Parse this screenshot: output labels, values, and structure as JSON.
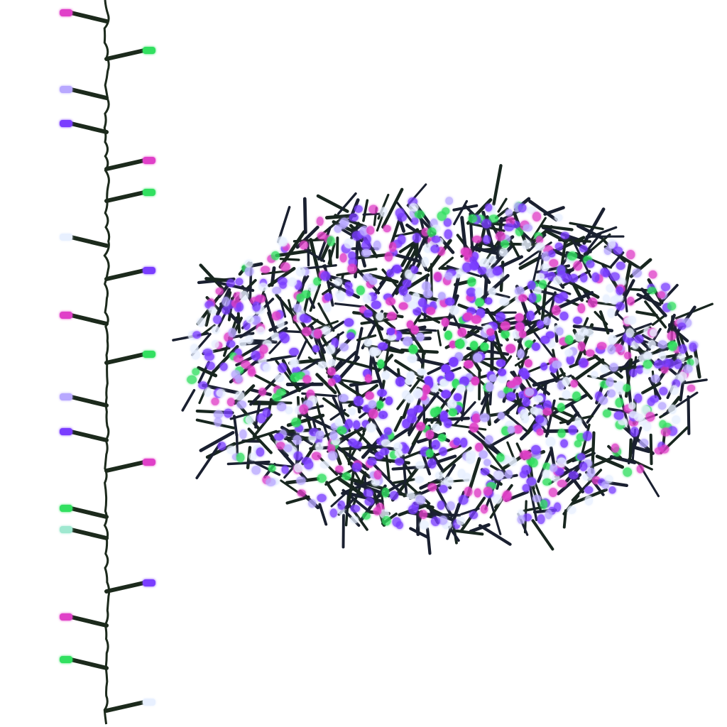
{
  "photo": {
    "subject": "led-cluster-string-lights",
    "background_color": "#ffffff",
    "wire_color": "#1c2a1c",
    "led_colors": {
      "pink": "#e040c8",
      "green": "#30e060",
      "purple": "#7a3cff",
      "white": "#e8f0ff",
      "lavender": "#b8a8ff",
      "teal": "#9fe8d0"
    },
    "string_leds": [
      "pink",
      "green",
      "lavender",
      "purple",
      "pink",
      "green",
      "white",
      "purple",
      "pink",
      "green",
      "lavender",
      "purple",
      "pink",
      "green",
      "teal",
      "purple",
      "pink",
      "green",
      "white"
    ],
    "cluster_palette": [
      "purple",
      "purple",
      "purple",
      "white",
      "white",
      "pink",
      "pink",
      "green",
      "lavender"
    ]
  }
}
